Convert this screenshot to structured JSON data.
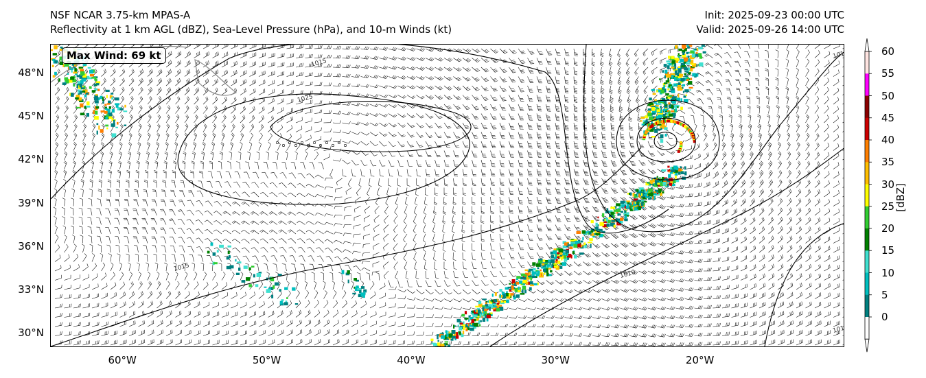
{
  "header": {
    "model_line": "NSF NCAR 3.75-km MPAS-A",
    "fields_line": "Reflectivity at 1 km AGL (dBZ), Sea-Level Pressure (hPa), and 10-m Winds (kt)",
    "init_line": "Init: 2025-09-23 00:00 UTC",
    "valid_line": "Valid: 2025-09-26 14:00 UTC"
  },
  "map": {
    "max_wind_label": "Max Wind: 69 kt",
    "lat_labels": [
      "48°N",
      "45°N",
      "42°N",
      "39°N",
      "36°N",
      "33°N",
      "30°N"
    ],
    "lon_labels": [
      "60°W",
      "50°W",
      "40°W",
      "30°W",
      "20°W"
    ],
    "isobar_labels": [
      "1015",
      "1025",
      "1015",
      "1010",
      "1015",
      "1015"
    ],
    "lon_range": [
      -65,
      -10
    ],
    "lat_range": [
      29,
      50
    ],
    "cyclone_center": {
      "lon": -22.5,
      "lat": 43.3
    },
    "anticyclone_center": {
      "lon": -46,
      "lat": 43.5
    }
  },
  "colorbar": {
    "title": "[dBZ]",
    "tick_labels": [
      "60",
      "55",
      "50",
      "45",
      "40",
      "35",
      "30",
      "25",
      "20",
      "15",
      "10",
      "5",
      "0"
    ],
    "colors": [
      "#ffe4e1",
      "#ff00ff",
      "#8b0000",
      "#cc0000",
      "#ff7f00",
      "#ffbf00",
      "#ffff00",
      "#32cd32",
      "#008000",
      "#40e0d0",
      "#00bfbf",
      "#008080"
    ],
    "extend_colors": {
      "top": "#ffffff",
      "bottom": "#ffffff"
    }
  }
}
